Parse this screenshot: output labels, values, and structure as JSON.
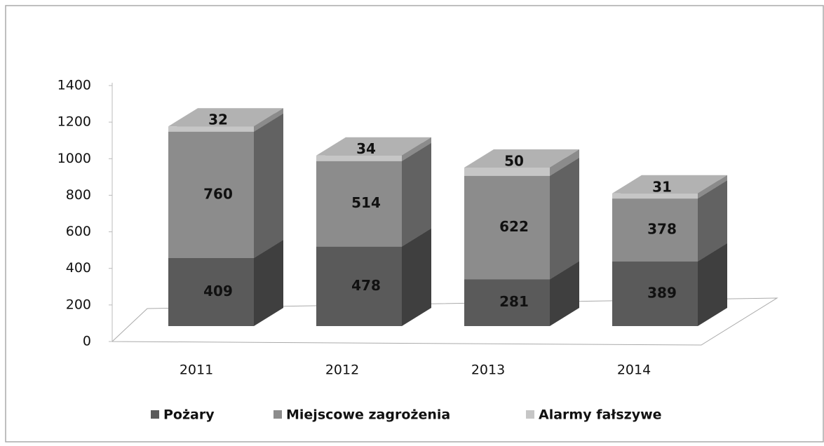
{
  "chart_data": {
    "type": "bar3d_stacked",
    "categories": [
      "2011",
      "2012",
      "2013",
      "2014"
    ],
    "series": [
      {
        "name": "Pożary",
        "color": "#5a5a5a",
        "values": [
          409,
          478,
          281,
          389
        ]
      },
      {
        "name": "Miejscowe zagrożenia",
        "color": "#8c8c8c",
        "values": [
          760,
          514,
          622,
          378
        ]
      },
      {
        "name": "Alarmy fałszywe",
        "color": "#c6c6c6",
        "values": [
          32,
          34,
          50,
          31
        ]
      }
    ],
    "ylim": [
      0,
      1400
    ],
    "yticks": [
      0,
      200,
      400,
      600,
      800,
      1000,
      1200,
      1400
    ],
    "grid": false,
    "legend": "bottom"
  }
}
